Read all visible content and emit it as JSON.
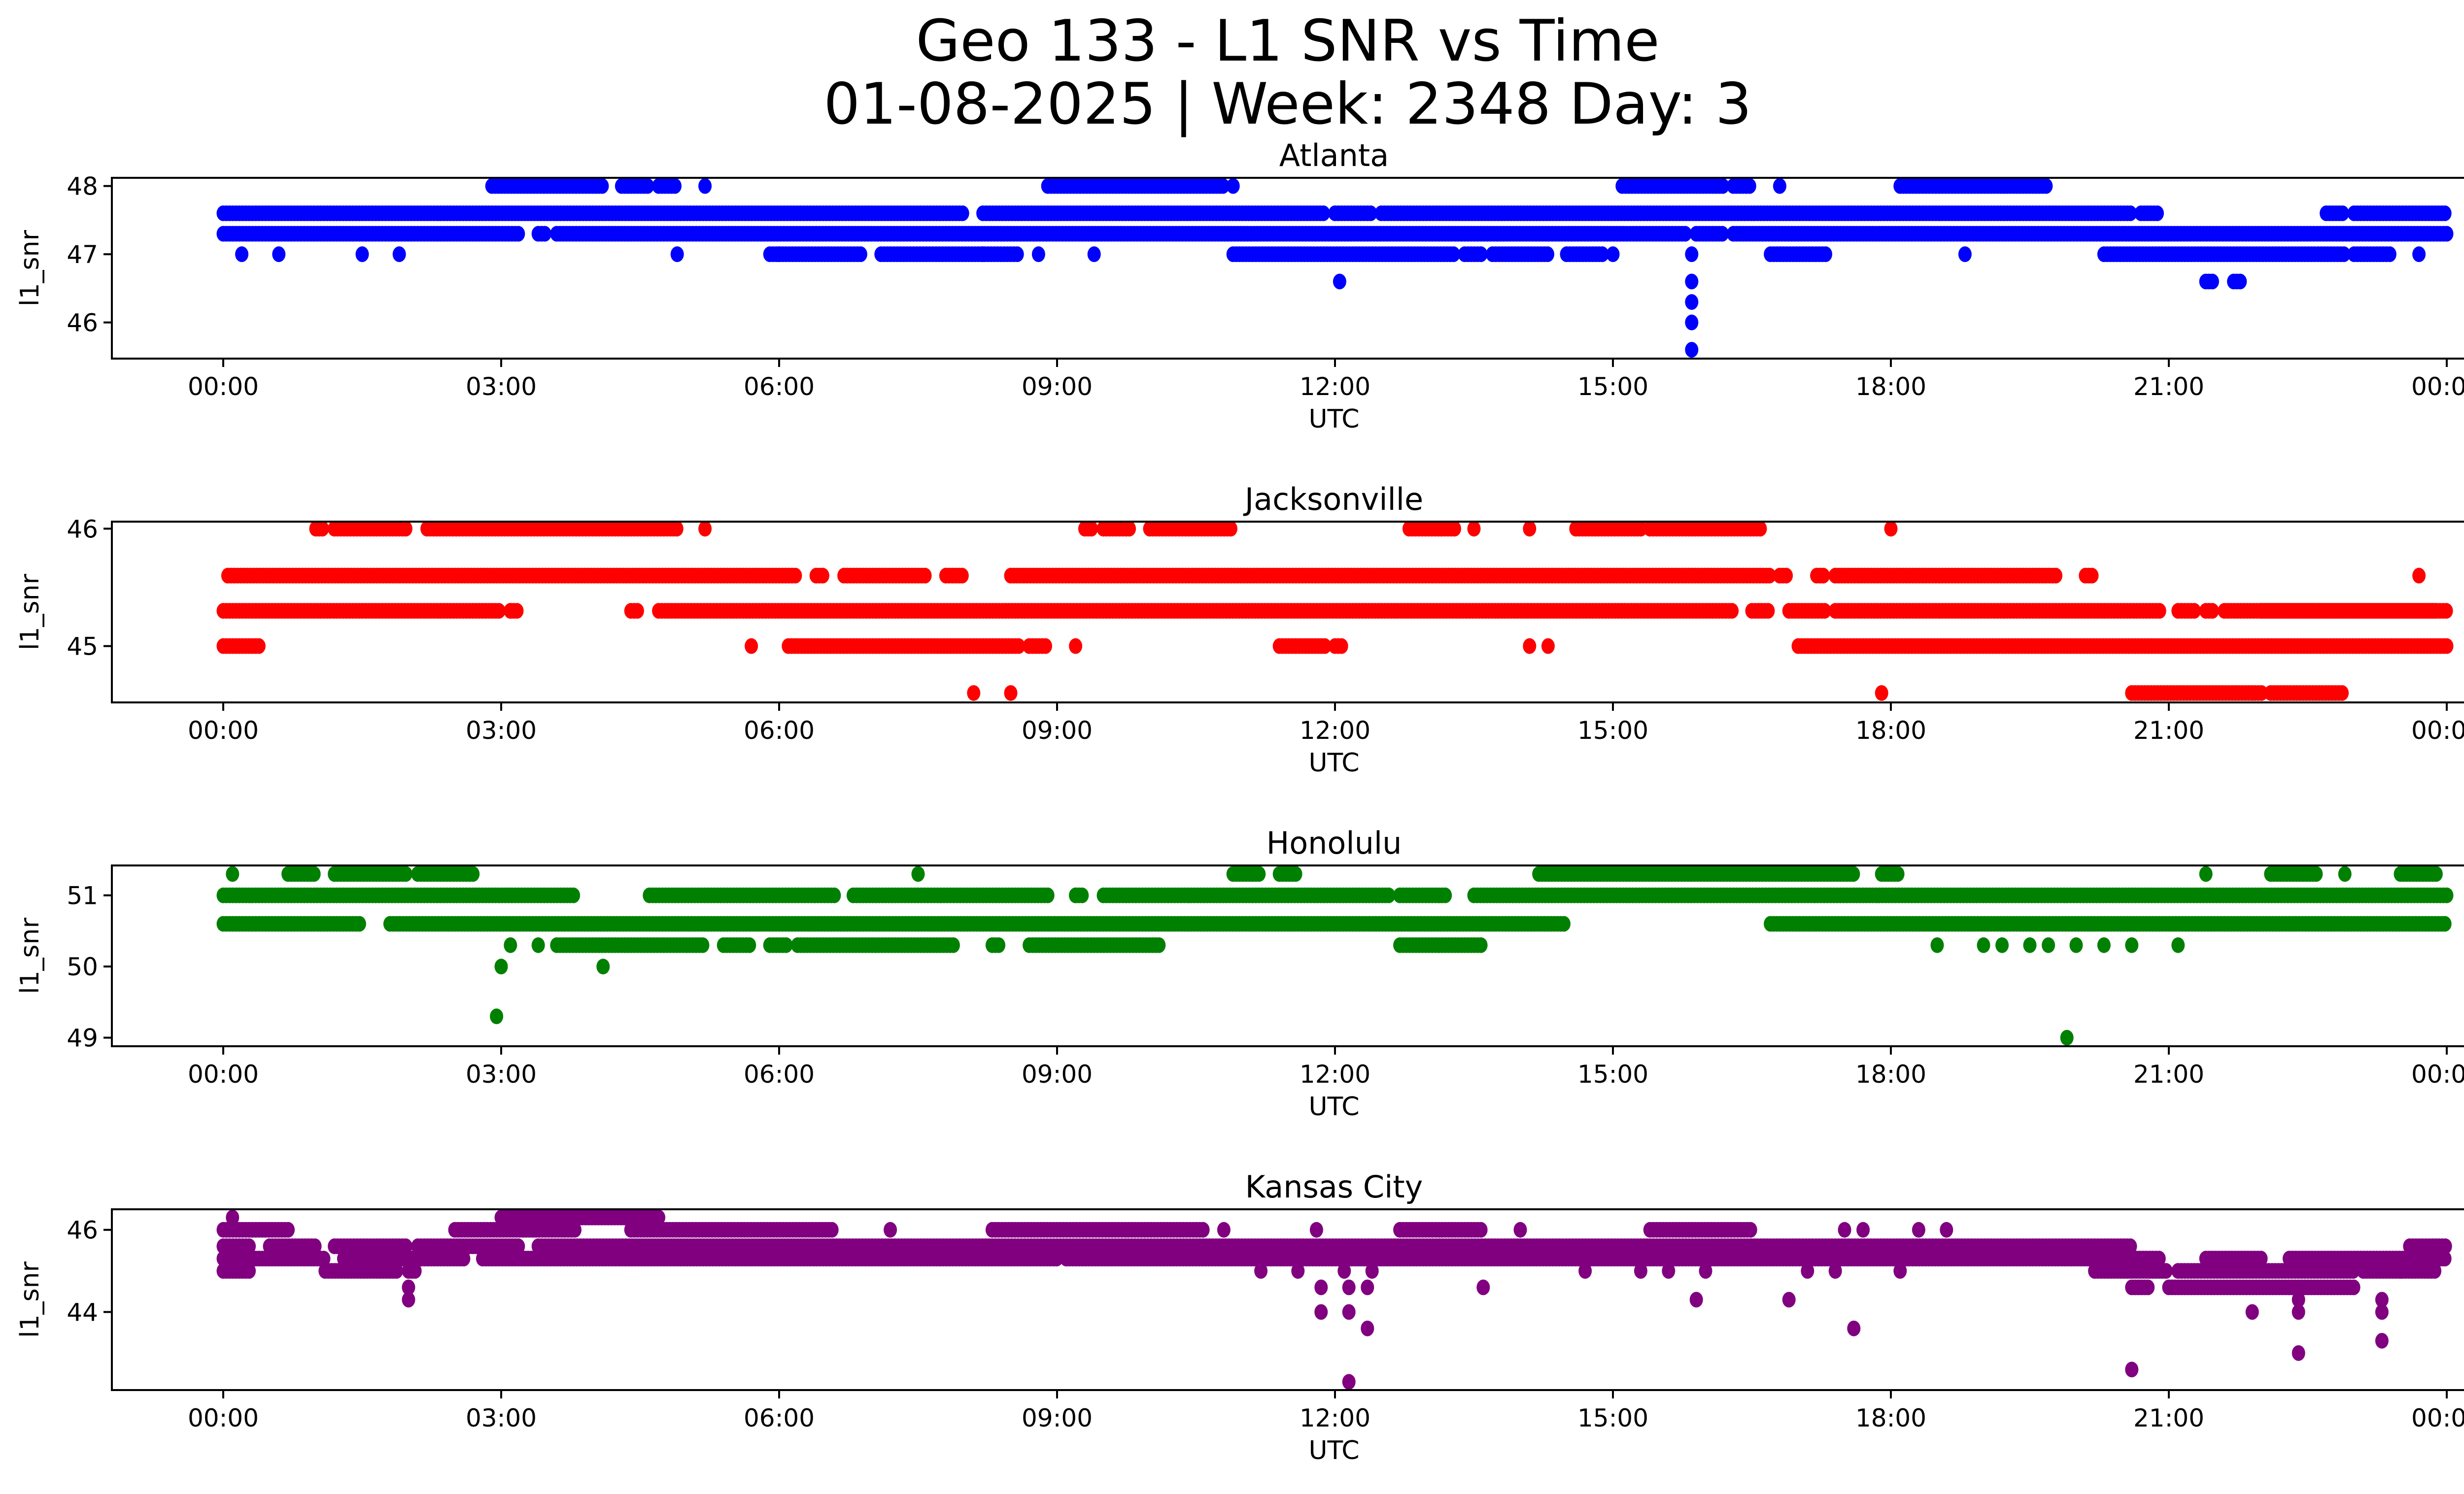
{
  "chart_data": {
    "type": "scatter",
    "title": "Geo 133 - L1 SNR vs Time",
    "subtitle": "01-08-2025 | Week: 2348 Day: 3",
    "x_tick_labels": [
      "00:00",
      "03:00",
      "06:00",
      "09:00",
      "12:00",
      "15:00",
      "18:00",
      "21:00",
      "00:00"
    ],
    "xlim_hours": [
      -1.1,
      25.2
    ],
    "grid": false,
    "panels": [
      {
        "title": "Atlanta",
        "xlabel": "UTC",
        "ylabel": "l1_snr",
        "color": "#0000ff",
        "ylim": [
          45.47,
          48.12
        ],
        "yticks": [
          46,
          47,
          48
        ],
        "runs": [
          {
            "y": 47.6,
            "x": [
              [
                0.0,
                8.0
              ],
              [
                8.2,
                11.9
              ],
              [
                12.0,
                12.4
              ],
              [
                12.5,
                20.6
              ],
              [
                20.7,
                20.9
              ],
              [
                22.7,
                22.9
              ],
              [
                23.0,
                24.0
              ]
            ]
          },
          {
            "y": 47.3,
            "x": [
              [
                0.0,
                3.2
              ],
              [
                3.4,
                3.5
              ],
              [
                3.6,
                15.8
              ],
              [
                15.9,
                16.2
              ],
              [
                16.3,
                24.0
              ]
            ]
          },
          {
            "y": 48.0,
            "x": [
              [
                2.9,
                4.1
              ],
              [
                4.3,
                4.6
              ],
              [
                4.7,
                4.9
              ],
              [
                8.9,
                10.8
              ],
              [
                15.1,
                16.2
              ],
              [
                16.3,
                16.5
              ],
              [
                18.1,
                19.7
              ]
            ]
          },
          {
            "y": 47.0,
            "x": [
              [
                5.9,
                6.9
              ],
              [
                7.1,
                8.6
              ],
              [
                10.9,
                13.3
              ],
              [
                13.4,
                13.6
              ],
              [
                13.7,
                14.3
              ],
              [
                14.5,
                14.9
              ],
              [
                16.7,
                17.3
              ],
              [
                20.3,
                22.9
              ],
              [
                23.0,
                23.4
              ]
            ]
          },
          {
            "y": 46.6,
            "x": [
              [
                21.4,
                21.5
              ],
              [
                21.7,
                21.8
              ]
            ]
          }
        ],
        "points": [
          {
            "x": 0.2,
            "y": 47.0
          },
          {
            "x": 0.6,
            "y": 47.0
          },
          {
            "x": 1.5,
            "y": 47.0
          },
          {
            "x": 1.9,
            "y": 47.0
          },
          {
            "x": 4.9,
            "y": 47.0
          },
          {
            "x": 8.8,
            "y": 47.0
          },
          {
            "x": 15.0,
            "y": 47.0
          },
          {
            "x": 6.0,
            "y": 47.0
          },
          {
            "x": 8.2,
            "y": 47.0
          },
          {
            "x": 9.4,
            "y": 47.0
          },
          {
            "x": 10.9,
            "y": 48.0
          },
          {
            "x": 16.8,
            "y": 48.0
          },
          {
            "x": 5.2,
            "y": 48.0
          },
          {
            "x": 18.8,
            "y": 47.0
          },
          {
            "x": 12.05,
            "y": 46.6
          },
          {
            "x": 23.7,
            "y": 47.0
          },
          {
            "x": 15.85,
            "y": 47.0
          },
          {
            "x": 15.85,
            "y": 46.6
          },
          {
            "x": 15.85,
            "y": 46.3
          },
          {
            "x": 15.85,
            "y": 46.0
          },
          {
            "x": 15.85,
            "y": 45.6
          }
        ]
      },
      {
        "title": "Jacksonville",
        "xlabel": "UTC",
        "ylabel": "l1_snr",
        "color": "#ff0000",
        "ylim": [
          44.52,
          46.06
        ],
        "yticks": [
          45,
          46
        ],
        "runs": [
          {
            "y": 45.6,
            "x": [
              [
                0.05,
                6.2
              ],
              [
                6.4,
                6.5
              ],
              [
                6.7,
                7.6
              ],
              [
                7.8,
                8.0
              ],
              [
                8.5,
                16.7
              ],
              [
                16.8,
                16.9
              ],
              [
                17.2,
                17.3
              ],
              [
                17.4,
                19.8
              ],
              [
                20.1,
                20.2
              ]
            ]
          },
          {
            "y": 45.3,
            "x": [
              [
                0.0,
                3.0
              ],
              [
                3.1,
                3.2
              ],
              [
                4.4,
                4.5
              ],
              [
                4.7,
                16.3
              ],
              [
                16.5,
                16.7
              ],
              [
                16.9,
                17.3
              ],
              [
                17.4,
                20.9
              ],
              [
                21.1,
                21.3
              ],
              [
                21.4,
                21.5
              ],
              [
                21.6,
                23.9
              ],
              [
                22.0,
                24.0
              ]
            ]
          },
          {
            "y": 46.0,
            "x": [
              [
                1.0,
                1.1
              ],
              [
                1.2,
                2.0
              ],
              [
                2.2,
                4.9
              ],
              [
                9.3,
                9.4
              ],
              [
                9.5,
                9.8
              ],
              [
                10.0,
                10.9
              ],
              [
                12.8,
                13.3
              ],
              [
                14.6,
                15.3
              ],
              [
                15.4,
                16.6
              ]
            ]
          },
          {
            "y": 45.0,
            "x": [
              [
                0.0,
                0.4
              ],
              [
                6.1,
                8.6
              ],
              [
                8.7,
                8.9
              ],
              [
                11.4,
                11.9
              ],
              [
                12.0,
                12.1
              ],
              [
                17.0,
                24.0
              ]
            ]
          },
          {
            "y": 44.6,
            "x": [
              [
                20.6,
                22.0
              ],
              [
                22.1,
                22.9
              ]
            ]
          }
        ],
        "points": [
          {
            "x": 5.2,
            "y": 46.0
          },
          {
            "x": 13.5,
            "y": 46.0
          },
          {
            "x": 14.1,
            "y": 46.0
          },
          {
            "x": 18.0,
            "y": 46.0
          },
          {
            "x": 5.7,
            "y": 45.0
          },
          {
            "x": 9.2,
            "y": 45.0
          },
          {
            "x": 14.1,
            "y": 45.0
          },
          {
            "x": 14.3,
            "y": 45.0
          },
          {
            "x": 3.1,
            "y": 45.3
          },
          {
            "x": 23.7,
            "y": 45.6
          },
          {
            "x": 8.1,
            "y": 44.6
          },
          {
            "x": 8.5,
            "y": 44.6
          },
          {
            "x": 17.9,
            "y": 44.6
          }
        ]
      },
      {
        "title": "Honolulu",
        "xlabel": "UTC",
        "ylabel": "l1_snr",
        "color": "#008000",
        "ylim": [
          48.88,
          51.42
        ],
        "yticks": [
          49,
          50,
          51
        ],
        "runs": [
          {
            "y": 51.0,
            "x": [
              [
                0.0,
                3.8
              ],
              [
                4.6,
                6.6
              ],
              [
                6.8,
                8.9
              ],
              [
                9.2,
                9.3
              ],
              [
                9.5,
                12.6
              ],
              [
                12.7,
                13.2
              ],
              [
                13.5,
                24.0
              ]
            ]
          },
          {
            "y": 50.6,
            "x": [
              [
                0.0,
                1.5
              ],
              [
                1.8,
                14.5
              ],
              [
                16.7,
                24.0
              ]
            ]
          },
          {
            "y": 50.3,
            "x": [
              [
                3.6,
                5.2
              ],
              [
                5.4,
                5.7
              ],
              [
                5.9,
                6.1
              ],
              [
                6.2,
                7.9
              ],
              [
                8.3,
                8.4
              ],
              [
                8.7,
                10.1
              ],
              [
                12.7,
                13.6
              ]
            ]
          },
          {
            "y": 51.3,
            "x": [
              [
                0.7,
                1.0
              ],
              [
                1.2,
                2.0
              ],
              [
                2.1,
                2.7
              ],
              [
                10.9,
                11.2
              ],
              [
                11.4,
                11.6
              ],
              [
                14.2,
                17.6
              ],
              [
                17.9,
                18.1
              ],
              [
                22.1,
                22.6
              ],
              [
                23.5,
                23.9
              ]
            ]
          }
        ],
        "points": [
          {
            "x": 0.1,
            "y": 51.3
          },
          {
            "x": 7.5,
            "y": 51.3
          },
          {
            "x": 21.4,
            "y": 51.3
          },
          {
            "x": 22.9,
            "y": 51.3
          },
          {
            "x": 3.0,
            "y": 50.0
          },
          {
            "x": 3.1,
            "y": 50.3
          },
          {
            "x": 3.4,
            "y": 50.3
          },
          {
            "x": 4.1,
            "y": 50.0
          },
          {
            "x": 2.95,
            "y": 49.3
          },
          {
            "x": 19.9,
            "y": 49.0
          },
          {
            "x": 18.5,
            "y": 50.3
          },
          {
            "x": 19.0,
            "y": 50.3
          },
          {
            "x": 19.2,
            "y": 50.3
          },
          {
            "x": 19.5,
            "y": 50.3
          },
          {
            "x": 19.7,
            "y": 50.3
          },
          {
            "x": 20.0,
            "y": 50.3
          },
          {
            "x": 20.3,
            "y": 50.3
          },
          {
            "x": 20.6,
            "y": 50.3
          },
          {
            "x": 21.1,
            "y": 50.3
          },
          {
            "x": 9.2,
            "y": 51.0
          }
        ]
      },
      {
        "title": "Kansas City",
        "xlabel": "UTC",
        "ylabel": "l1_snr",
        "color": "#800080",
        "ylim": [
          42.1,
          46.5
        ],
        "yticks": [
          44,
          46
        ],
        "runs": [
          {
            "y": 45.6,
            "x": [
              [
                0.0,
                0.3
              ],
              [
                0.5,
                1.0
              ],
              [
                1.2,
                2.0
              ],
              [
                2.1,
                3.2
              ],
              [
                3.4,
                20.6
              ],
              [
                23.6,
                24.0
              ]
            ]
          },
          {
            "y": 45.3,
            "x": [
              [
                0.0,
                1.1
              ],
              [
                1.3,
                2.6
              ],
              [
                2.8,
                9.0
              ],
              [
                9.1,
                20.9
              ],
              [
                21.4,
                22.0
              ],
              [
                22.3,
                24.0
              ]
            ]
          },
          {
            "y": 46.0,
            "x": [
              [
                0.0,
                0.7
              ],
              [
                2.5,
                3.8
              ],
              [
                4.4,
                6.6
              ],
              [
                8.3,
                10.6
              ],
              [
                12.7,
                13.6
              ],
              [
                15.4,
                16.5
              ]
            ]
          },
          {
            "y": 45.0,
            "x": [
              [
                0.0,
                0.3
              ],
              [
                1.1,
                1.9
              ],
              [
                2.0,
                2.1
              ],
              [
                20.2,
                21.0
              ],
              [
                21.1,
                23.0
              ],
              [
                23.1,
                23.9
              ]
            ]
          },
          {
            "y": 46.3,
            "x": [
              [
                3.0,
                4.7
              ]
            ]
          },
          {
            "y": 44.6,
            "x": [
              [
                20.6,
                20.8
              ],
              [
                21.0,
                23.0
              ]
            ]
          }
        ],
        "points": [
          {
            "x": 0.1,
            "y": 46.3
          },
          {
            "x": 4.6,
            "y": 46.3
          },
          {
            "x": 4.7,
            "y": 46.3
          },
          {
            "x": 2.0,
            "y": 44.6
          },
          {
            "x": 2.0,
            "y": 44.3
          },
          {
            "x": 7.2,
            "y": 46.0
          },
          {
            "x": 10.8,
            "y": 46.0
          },
          {
            "x": 11.8,
            "y": 46.0
          },
          {
            "x": 14.0,
            "y": 46.0
          },
          {
            "x": 17.5,
            "y": 46.0
          },
          {
            "x": 17.7,
            "y": 46.0
          },
          {
            "x": 18.3,
            "y": 46.0
          },
          {
            "x": 18.6,
            "y": 46.0
          },
          {
            "x": 11.2,
            "y": 45.0
          },
          {
            "x": 11.6,
            "y": 45.0
          },
          {
            "x": 12.1,
            "y": 45.0
          },
          {
            "x": 12.4,
            "y": 45.0
          },
          {
            "x": 14.7,
            "y": 45.0
          },
          {
            "x": 15.3,
            "y": 45.0
          },
          {
            "x": 15.6,
            "y": 45.0
          },
          {
            "x": 16.0,
            "y": 45.0
          },
          {
            "x": 17.1,
            "y": 45.0
          },
          {
            "x": 17.4,
            "y": 45.0
          },
          {
            "x": 18.1,
            "y": 45.0
          },
          {
            "x": 11.85,
            "y": 44.6
          },
          {
            "x": 12.15,
            "y": 44.6
          },
          {
            "x": 12.35,
            "y": 44.6
          },
          {
            "x": 11.85,
            "y": 44.0
          },
          {
            "x": 12.15,
            "y": 44.0
          },
          {
            "x": 12.35,
            "y": 43.6
          },
          {
            "x": 12.15,
            "y": 42.3
          },
          {
            "x": 13.6,
            "y": 44.6
          },
          {
            "x": 15.9,
            "y": 44.3
          },
          {
            "x": 16.9,
            "y": 44.3
          },
          {
            "x": 17.6,
            "y": 43.6
          },
          {
            "x": 20.6,
            "y": 42.6
          },
          {
            "x": 21.9,
            "y": 44.0
          },
          {
            "x": 22.4,
            "y": 44.3
          },
          {
            "x": 22.4,
            "y": 44.0
          },
          {
            "x": 22.4,
            "y": 43.0
          },
          {
            "x": 23.3,
            "y": 44.3
          },
          {
            "x": 23.3,
            "y": 44.0
          },
          {
            "x": 23.3,
            "y": 43.3
          },
          {
            "x": 23.5,
            "y": 45.0
          }
        ]
      }
    ]
  }
}
